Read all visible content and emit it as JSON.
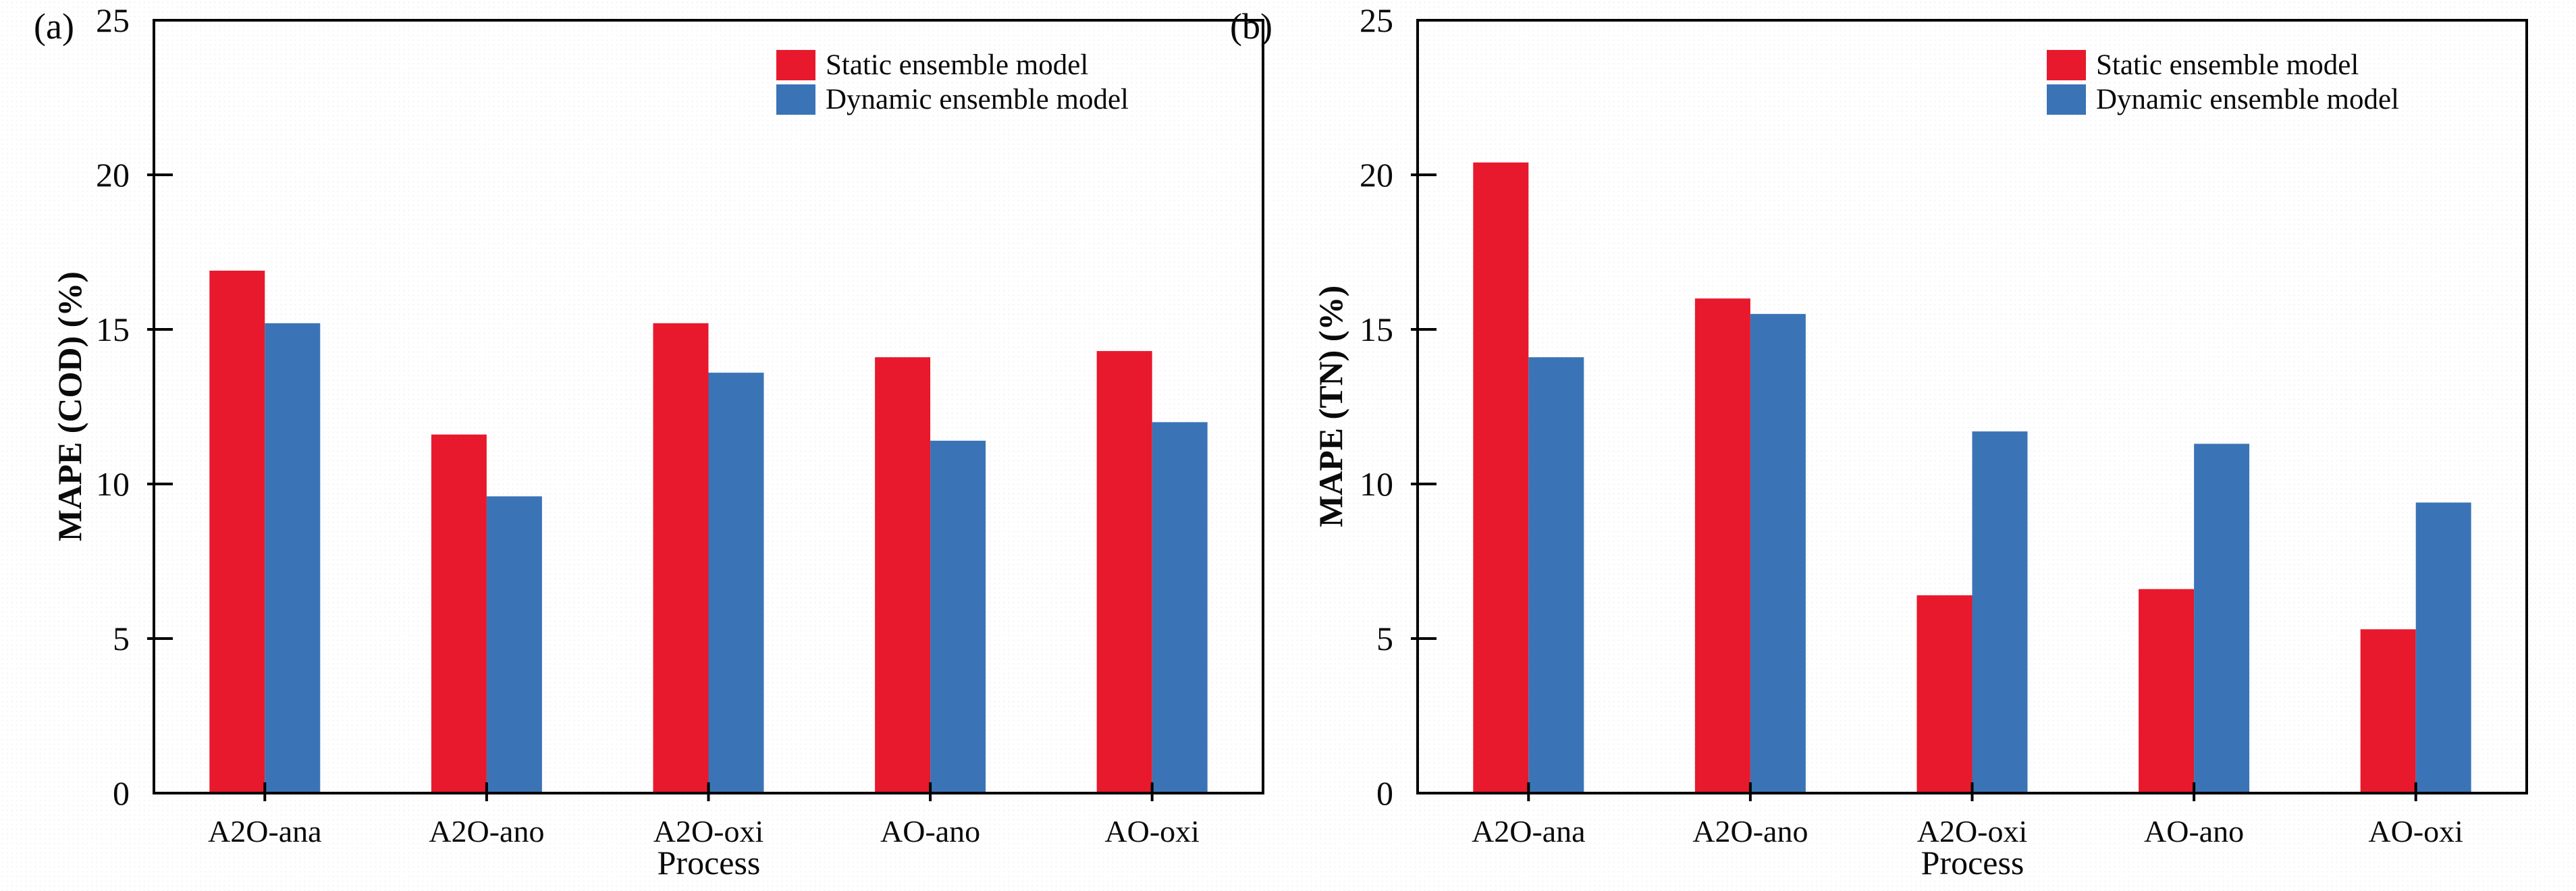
{
  "figure": {
    "background": "#ffffff",
    "text_color": "#0a0a0a",
    "frame_color": "#000000"
  },
  "legend": {
    "position": "top-right-inside",
    "items": [
      {
        "label": "Static ensemble model",
        "color": "#E8192C"
      },
      {
        "label": "Dynamic ensemble model",
        "color": "#3B74B6"
      }
    ]
  },
  "chart_data": [
    {
      "type": "bar",
      "panel_letter": "(a)",
      "title": "",
      "categories": [
        "A2O-ana",
        "A2O-ano",
        "A2O-oxi",
        "AO-ano",
        "AO-oxi"
      ],
      "series": [
        {
          "name": "Static ensemble model",
          "color": "#E8192C",
          "values": [
            16.9,
            11.6,
            15.2,
            14.1,
            14.3
          ]
        },
        {
          "name": "Dynamic ensemble model",
          "color": "#3B74B6",
          "values": [
            15.2,
            9.6,
            13.6,
            11.4,
            12.0
          ]
        }
      ],
      "xlabel": "Process",
      "ylabel": "MAPE (COD) (%)",
      "ylim": [
        0,
        25
      ],
      "yticks": [
        0,
        5,
        10,
        15,
        20,
        25
      ],
      "grid": false,
      "legend_position": "top-right-inside"
    },
    {
      "type": "bar",
      "panel_letter": "(b)",
      "title": "",
      "categories": [
        "A2O-ana",
        "A2O-ano",
        "A2O-oxi",
        "AO-ano",
        "AO-oxi"
      ],
      "series": [
        {
          "name": "Static ensemble model",
          "color": "#E8192C",
          "values": [
            20.4,
            16.0,
            6.4,
            6.6,
            5.3
          ]
        },
        {
          "name": "Dynamic ensemble model",
          "color": "#3B74B6",
          "values": [
            14.1,
            15.5,
            11.7,
            11.3,
            9.4
          ]
        }
      ],
      "xlabel": "Process",
      "ylabel": "MAPE (TN) (%)",
      "ylim": [
        0,
        25
      ],
      "yticks": [
        0,
        5,
        10,
        15,
        20,
        25
      ],
      "grid": false,
      "legend_position": "top-right-inside"
    }
  ]
}
